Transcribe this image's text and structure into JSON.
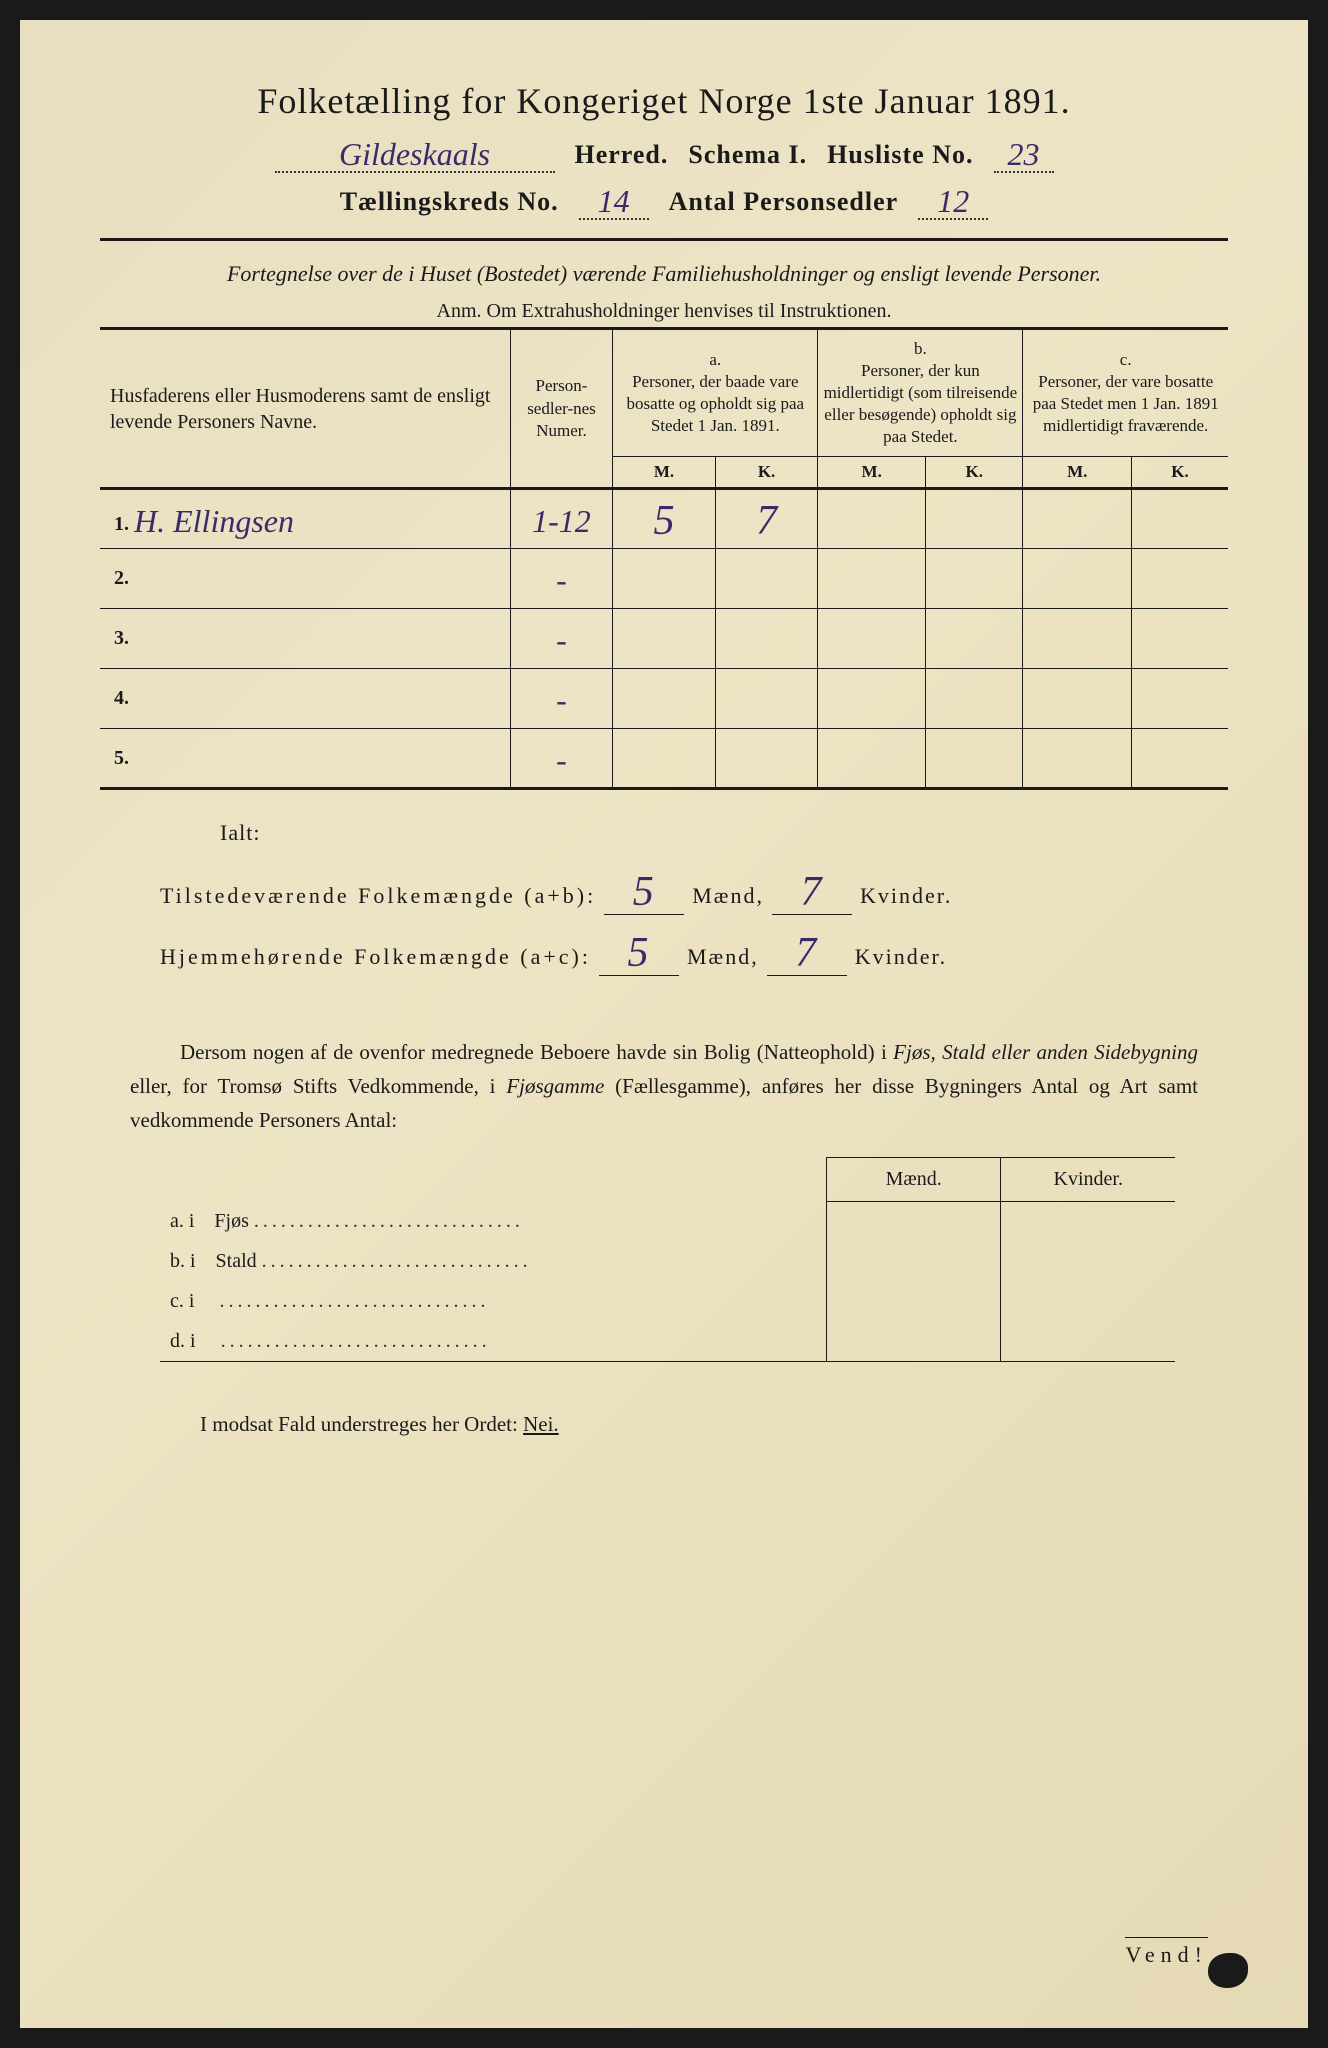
{
  "title": "Folketælling for Kongeriget Norge 1ste Januar 1891.",
  "header": {
    "herred_value": "Gildeskaals",
    "herred_label": "Herred.",
    "schema_label": "Schema I.",
    "husliste_label": "Husliste No.",
    "husliste_value": "23",
    "taellingskreds_label": "Tællingskreds No.",
    "taellingskreds_value": "14",
    "antal_label": "Antal Personsedler",
    "antal_value": "12"
  },
  "subtitle": "Fortegnelse over de i Huset (Bostedet) værende Familiehusholdninger og ensligt levende Personer.",
  "anm": "Anm. Om Extrahusholdninger henvises til Instruktionen.",
  "table": {
    "col1": "Husfaderens eller Husmoderens samt de ensligt levende Personers Navne.",
    "col2": "Person-sedler-nes Numer.",
    "col_a_label": "a.",
    "col_a": "Personer, der baade vare bosatte og opholdt sig paa Stedet 1 Jan. 1891.",
    "col_b_label": "b.",
    "col_b": "Personer, der kun midlertidigt (som tilreisende eller besøgende) opholdt sig paa Stedet.",
    "col_c_label": "c.",
    "col_c": "Personer, der vare bosatte paa Stedet men 1 Jan. 1891 midlertidigt fraværende.",
    "m": "M.",
    "k": "K.",
    "rows": [
      {
        "num": "1.",
        "name": "H. Ellingsen",
        "numer": "1-12",
        "a_m": "5",
        "a_k": "7",
        "b_m": "",
        "b_k": "",
        "c_m": "",
        "c_k": ""
      },
      {
        "num": "2.",
        "name": "",
        "numer": "-",
        "a_m": "",
        "a_k": "",
        "b_m": "",
        "b_k": "",
        "c_m": "",
        "c_k": ""
      },
      {
        "num": "3.",
        "name": "",
        "numer": "-",
        "a_m": "",
        "a_k": "",
        "b_m": "",
        "b_k": "",
        "c_m": "",
        "c_k": ""
      },
      {
        "num": "4.",
        "name": "",
        "numer": "-",
        "a_m": "",
        "a_k": "",
        "b_m": "",
        "b_k": "",
        "c_m": "",
        "c_k": ""
      },
      {
        "num": "5.",
        "name": "",
        "numer": "-",
        "a_m": "",
        "a_k": "",
        "b_m": "",
        "b_k": "",
        "c_m": "",
        "c_k": ""
      }
    ]
  },
  "totals": {
    "ialt": "Ialt:",
    "row1_label": "Tilstedeværende Folkemængde (a+b):",
    "row1_m": "5",
    "row1_k": "7",
    "row2_label": "Hjemmehørende Folkemængde (a+c):",
    "row2_m": "5",
    "row2_k": "7",
    "maend": "Mænd,",
    "kvinder": "Kvinder."
  },
  "paragraph": "Dersom nogen af de ovenfor medregnede Beboere havde sin Bolig (Natteophold) i Fjøs, Stald eller anden Sidebygning eller, for Tromsø Stifts Vedkommende, i Fjøsgamme (Fællesgamme), anføres her disse Bygningers Antal og Art samt vedkommende Personers Antal:",
  "secondary": {
    "maend": "Mænd.",
    "kvinder": "Kvinder.",
    "rows": [
      {
        "label": "a. i",
        "type": "Fjøs"
      },
      {
        "label": "b. i",
        "type": "Stald"
      },
      {
        "label": "c. i",
        "type": ""
      },
      {
        "label": "d. i",
        "type": ""
      }
    ]
  },
  "footer": "I modsat Fald understreges her Ordet:",
  "nei": "Nei.",
  "vend": "Vend!",
  "colors": {
    "paper": "#e8dfc0",
    "ink": "#1a1a1a",
    "handwriting": "#3a2a6a"
  }
}
